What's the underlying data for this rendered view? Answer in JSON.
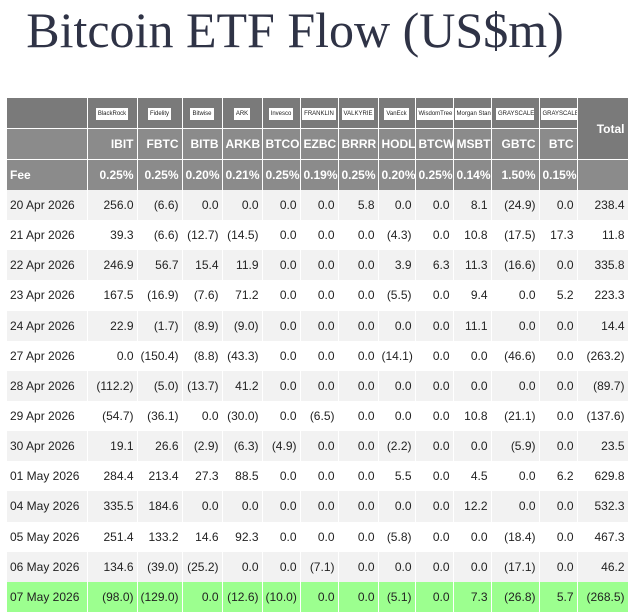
{
  "title": "Bitcoin ETF Flow (US$m)",
  "chart_data": {
    "type": "table",
    "title": "Bitcoin ETF Flow (US$m)",
    "total_label": "Total",
    "fee_label": "Fee",
    "logo_texts": [
      "BlackRock",
      "Fidelity",
      "Bitwise",
      "ARK",
      "Invesco",
      "FRANKLIN",
      "VALKYRIE",
      "VanEck",
      "WisdomTree",
      "Morgan Stanley",
      "GRAYSCALE",
      "GRAYSCALE"
    ],
    "tickers": [
      "IBIT",
      "FBTC",
      "BITB",
      "ARKB",
      "BTCO",
      "EZBC",
      "BRRR",
      "HODL",
      "BTCW",
      "MSBT",
      "GBTC",
      "BTC"
    ],
    "fees": [
      "0.25%",
      "0.25%",
      "0.20%",
      "0.21%",
      "0.25%",
      "0.19%",
      "0.25%",
      "0.20%",
      "0.25%",
      "0.14%",
      "1.50%",
      "0.15%"
    ],
    "rows": [
      {
        "date": "20 Apr 2026",
        "values": [
          "256.0",
          "(6.6)",
          "0.0",
          "0.0",
          "0.0",
          "0.0",
          "5.8",
          "0.0",
          "0.0",
          "8.1",
          "(24.9)",
          "0.0"
        ],
        "total": "238.4"
      },
      {
        "date": "21 Apr 2026",
        "values": [
          "39.3",
          "(6.6)",
          "(12.7)",
          "(14.5)",
          "0.0",
          "0.0",
          "0.0",
          "(4.3)",
          "0.0",
          "10.8",
          "(17.5)",
          "17.3"
        ],
        "total": "11.8"
      },
      {
        "date": "22 Apr 2026",
        "values": [
          "246.9",
          "56.7",
          "15.4",
          "11.9",
          "0.0",
          "0.0",
          "0.0",
          "3.9",
          "6.3",
          "11.3",
          "(16.6)",
          "0.0"
        ],
        "total": "335.8"
      },
      {
        "date": "23 Apr 2026",
        "values": [
          "167.5",
          "(16.9)",
          "(7.6)",
          "71.2",
          "0.0",
          "0.0",
          "0.0",
          "(5.5)",
          "0.0",
          "9.4",
          "0.0",
          "5.2"
        ],
        "total": "223.3"
      },
      {
        "date": "24 Apr 2026",
        "values": [
          "22.9",
          "(1.7)",
          "(8.9)",
          "(9.0)",
          "0.0",
          "0.0",
          "0.0",
          "0.0",
          "0.0",
          "11.1",
          "0.0",
          "0.0"
        ],
        "total": "14.4"
      },
      {
        "date": "27 Apr 2026",
        "values": [
          "0.0",
          "(150.4)",
          "(8.8)",
          "(43.3)",
          "0.0",
          "0.0",
          "0.0",
          "(14.1)",
          "0.0",
          "0.0",
          "(46.6)",
          "0.0"
        ],
        "total": "(263.2)"
      },
      {
        "date": "28 Apr 2026",
        "values": [
          "(112.2)",
          "(5.0)",
          "(13.7)",
          "41.2",
          "0.0",
          "0.0",
          "0.0",
          "0.0",
          "0.0",
          "0.0",
          "0.0",
          "0.0"
        ],
        "total": "(89.7)"
      },
      {
        "date": "29 Apr 2026",
        "values": [
          "(54.7)",
          "(36.1)",
          "0.0",
          "(30.0)",
          "0.0",
          "(6.5)",
          "0.0",
          "0.0",
          "0.0",
          "10.8",
          "(21.1)",
          "0.0"
        ],
        "total": "(137.6)"
      },
      {
        "date": "30 Apr 2026",
        "values": [
          "19.1",
          "26.6",
          "(2.9)",
          "(6.3)",
          "(4.9)",
          "0.0",
          "0.0",
          "(2.2)",
          "0.0",
          "0.0",
          "(5.9)",
          "0.0"
        ],
        "total": "23.5"
      },
      {
        "date": "01 May 2026",
        "values": [
          "284.4",
          "213.4",
          "27.3",
          "88.5",
          "0.0",
          "0.0",
          "0.0",
          "5.5",
          "0.0",
          "4.5",
          "0.0",
          "6.2"
        ],
        "total": "629.8"
      },
      {
        "date": "04 May 2026",
        "values": [
          "335.5",
          "184.6",
          "0.0",
          "0.0",
          "0.0",
          "0.0",
          "0.0",
          "0.0",
          "0.0",
          "12.2",
          "0.0",
          "0.0"
        ],
        "total": "532.3"
      },
      {
        "date": "05 May 2026",
        "values": [
          "251.4",
          "133.2",
          "14.6",
          "92.3",
          "0.0",
          "0.0",
          "0.0",
          "(5.8)",
          "0.0",
          "0.0",
          "(18.4)",
          "0.0"
        ],
        "total": "467.3"
      },
      {
        "date": "06 May 2026",
        "values": [
          "134.6",
          "(39.0)",
          "(25.2)",
          "0.0",
          "0.0",
          "(7.1)",
          "0.0",
          "0.0",
          "0.0",
          "0.0",
          "(17.1)",
          "0.0"
        ],
        "total": "46.2"
      },
      {
        "date": "07 May 2026",
        "values": [
          "(98.0)",
          "(129.0)",
          "0.0",
          "(12.6)",
          "(10.0)",
          "0.0",
          "0.0",
          "(5.1)",
          "0.0",
          "7.3",
          "(26.8)",
          "5.7"
        ],
        "total": "(268.5)"
      }
    ]
  }
}
